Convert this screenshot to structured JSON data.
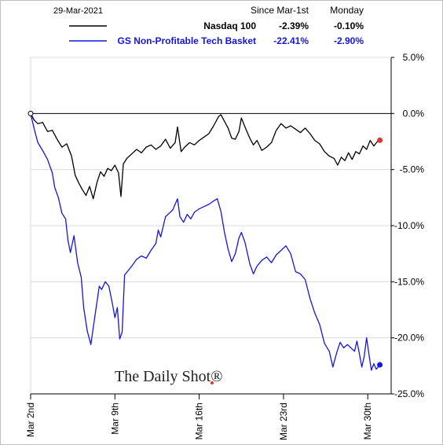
{
  "chart_data": {
    "type": "line",
    "date_label": "29-Mar-2021",
    "columns": [
      "Since Mar-1st",
      "Monday"
    ],
    "series": [
      {
        "name": "Nasdaq 100",
        "color": "#000000",
        "end_marker_color": "#e8322d",
        "since_mar_1st": "-2.39%",
        "monday": "-0.10%",
        "points": [
          [
            0,
            0
          ],
          [
            0.3,
            -0.6
          ],
          [
            0.6,
            -0.9
          ],
          [
            1.0,
            -0.8
          ],
          [
            1.4,
            -1.6
          ],
          [
            1.8,
            -1.5
          ],
          [
            2.2,
            -2.3
          ],
          [
            2.6,
            -3.0
          ],
          [
            3.0,
            -2.7
          ],
          [
            3.4,
            -3.8
          ],
          [
            3.7,
            -5.5
          ],
          [
            4.0,
            -6.2
          ],
          [
            4.3,
            -6.8
          ],
          [
            4.6,
            -7.3
          ],
          [
            4.9,
            -6.5
          ],
          [
            5.2,
            -7.6
          ],
          [
            5.5,
            -6.2
          ],
          [
            5.8,
            -5.2
          ],
          [
            6.1,
            -5.6
          ],
          [
            6.4,
            -4.9
          ],
          [
            6.7,
            -5.1
          ],
          [
            7.0,
            -4.6
          ],
          [
            7.3,
            -5.3
          ],
          [
            7.5,
            -7.4
          ],
          [
            7.7,
            -4.5
          ],
          [
            8.0,
            -4.0
          ],
          [
            8.4,
            -3.6
          ],
          [
            8.8,
            -3.2
          ],
          [
            9.2,
            -3.5
          ],
          [
            9.6,
            -3.0
          ],
          [
            10.0,
            -2.8
          ],
          [
            10.4,
            -3.2
          ],
          [
            10.8,
            -2.9
          ],
          [
            11.2,
            -2.3
          ],
          [
            11.6,
            -3.1
          ],
          [
            12.0,
            -2.6
          ],
          [
            12.2,
            -1.2
          ],
          [
            12.5,
            -3.4
          ],
          [
            12.8,
            -3.0
          ],
          [
            13.2,
            -2.6
          ],
          [
            13.6,
            -2.8
          ],
          [
            14.0,
            -2.4
          ],
          [
            14.4,
            -2.1
          ],
          [
            14.8,
            -1.8
          ],
          [
            15.2,
            -1.1
          ],
          [
            15.6,
            -0.3
          ],
          [
            15.8,
            -0.1
          ],
          [
            16.1,
            -0.7
          ],
          [
            16.4,
            -1.3
          ],
          [
            16.7,
            -2.2
          ],
          [
            17.0,
            -2.3
          ],
          [
            17.3,
            -1.6
          ],
          [
            17.5,
            -0.4
          ],
          [
            17.8,
            -1.2
          ],
          [
            18.2,
            -2.2
          ],
          [
            18.5,
            -2.8
          ],
          [
            18.8,
            -2.4
          ],
          [
            19.2,
            -3.3
          ],
          [
            19.6,
            -3.0
          ],
          [
            20.0,
            -2.6
          ],
          [
            20.4,
            -1.5
          ],
          [
            20.8,
            -0.9
          ],
          [
            21.2,
            -1.3
          ],
          [
            21.6,
            -1.1
          ],
          [
            22.0,
            -1.4
          ],
          [
            22.4,
            -1.7
          ],
          [
            22.8,
            -1.3
          ],
          [
            23.2,
            -1.8
          ],
          [
            23.6,
            -2.4
          ],
          [
            24.0,
            -2.7
          ],
          [
            24.4,
            -3.4
          ],
          [
            24.8,
            -3.8
          ],
          [
            25.2,
            -4.0
          ],
          [
            25.5,
            -4.6
          ],
          [
            25.8,
            -3.9
          ],
          [
            26.1,
            -4.2
          ],
          [
            26.4,
            -3.5
          ],
          [
            26.7,
            -4.1
          ],
          [
            27.0,
            -3.4
          ],
          [
            27.3,
            -3.6
          ],
          [
            27.6,
            -2.9
          ],
          [
            27.9,
            -3.2
          ],
          [
            28.2,
            -2.4
          ],
          [
            28.5,
            -2.9
          ],
          [
            28.8,
            -2.5
          ],
          [
            29.0,
            -2.39
          ]
        ]
      },
      {
        "name": "GS Non-Profitable Tech Basket",
        "color": "#1515e0",
        "end_marker_color": "#1515e0",
        "since_mar_1st": "-22.41%",
        "monday": "-2.90%",
        "points": [
          [
            0,
            0
          ],
          [
            0.3,
            -1.4
          ],
          [
            0.6,
            -2.6
          ],
          [
            1.0,
            -3.3
          ],
          [
            1.4,
            -4.1
          ],
          [
            1.8,
            -5.3
          ],
          [
            2.0,
            -6.6
          ],
          [
            2.3,
            -7.5
          ],
          [
            2.6,
            -8.9
          ],
          [
            2.9,
            -9.4
          ],
          [
            3.1,
            -11.3
          ],
          [
            3.3,
            -12.4
          ],
          [
            3.6,
            -10.9
          ],
          [
            3.9,
            -13.3
          ],
          [
            4.2,
            -14.6
          ],
          [
            4.4,
            -17.3
          ],
          [
            4.7,
            -19.4
          ],
          [
            5.0,
            -20.6
          ],
          [
            5.2,
            -19.1
          ],
          [
            5.4,
            -17.6
          ],
          [
            5.7,
            -15.4
          ],
          [
            5.9,
            -15.7
          ],
          [
            6.2,
            -15.0
          ],
          [
            6.5,
            -15.4
          ],
          [
            6.8,
            -17.0
          ],
          [
            7.0,
            -18.2
          ],
          [
            7.2,
            -17.3
          ],
          [
            7.4,
            -20.1
          ],
          [
            7.6,
            -19.5
          ],
          [
            7.8,
            -14.4
          ],
          [
            8.1,
            -14.0
          ],
          [
            8.4,
            -13.6
          ],
          [
            8.8,
            -13.0
          ],
          [
            9.2,
            -12.7
          ],
          [
            9.6,
            -12.9
          ],
          [
            10.0,
            -12.2
          ],
          [
            10.4,
            -11.6
          ],
          [
            10.6,
            -10.4
          ],
          [
            10.8,
            -11.0
          ],
          [
            11.2,
            -9.2
          ],
          [
            11.5,
            -8.9
          ],
          [
            11.8,
            -8.6
          ],
          [
            12.2,
            -7.6
          ],
          [
            12.4,
            -9.2
          ],
          [
            12.7,
            -9.7
          ],
          [
            13.0,
            -9.0
          ],
          [
            13.3,
            -9.4
          ],
          [
            13.6,
            -8.8
          ],
          [
            14.0,
            -8.5
          ],
          [
            14.4,
            -8.3
          ],
          [
            14.8,
            -8.1
          ],
          [
            15.2,
            -7.8
          ],
          [
            15.5,
            -7.6
          ],
          [
            15.8,
            -8.7
          ],
          [
            16.1,
            -10.6
          ],
          [
            16.4,
            -12.1
          ],
          [
            16.7,
            -13.2
          ],
          [
            17.0,
            -12.5
          ],
          [
            17.3,
            -11.1
          ],
          [
            17.5,
            -10.6
          ],
          [
            17.8,
            -11.5
          ],
          [
            18.2,
            -13.4
          ],
          [
            18.5,
            -14.3
          ],
          [
            18.8,
            -13.6
          ],
          [
            19.2,
            -13.1
          ],
          [
            19.6,
            -12.8
          ],
          [
            20.0,
            -13.3
          ],
          [
            20.4,
            -12.6
          ],
          [
            20.8,
            -12.2
          ],
          [
            21.2,
            -11.8
          ],
          [
            21.6,
            -12.5
          ],
          [
            22.0,
            -14.1
          ],
          [
            22.4,
            -14.3
          ],
          [
            22.8,
            -14.8
          ],
          [
            23.2,
            -16.5
          ],
          [
            23.6,
            -17.8
          ],
          [
            24.0,
            -18.8
          ],
          [
            24.4,
            -20.5
          ],
          [
            24.8,
            -21.2
          ],
          [
            25.1,
            -22.6
          ],
          [
            25.4,
            -21.4
          ],
          [
            25.7,
            -20.4
          ],
          [
            26.0,
            -20.9
          ],
          [
            26.3,
            -20.6
          ],
          [
            26.6,
            -20.9
          ],
          [
            26.9,
            -21.2
          ],
          [
            27.1,
            -20.3
          ],
          [
            27.3,
            -21.4
          ],
          [
            27.5,
            -22.6
          ],
          [
            27.7,
            -21.7
          ],
          [
            27.9,
            -20.0
          ],
          [
            28.1,
            -21.5
          ],
          [
            28.3,
            -22.9
          ],
          [
            28.5,
            -22.3
          ],
          [
            28.7,
            -22.8
          ],
          [
            29.0,
            -22.41
          ]
        ]
      }
    ],
    "x_ticks": [
      {
        "label": "Mar 2nd",
        "x": 0
      },
      {
        "label": "Mar 9th",
        "x": 7
      },
      {
        "label": "Mar 16th",
        "x": 14
      },
      {
        "label": "Mar 23rd",
        "x": 21
      },
      {
        "label": "Mar 30th",
        "x": 28
      }
    ],
    "xlim": [
      0,
      29
    ],
    "ylim": [
      -25,
      5
    ],
    "y_ticks": [
      {
        "label": "5.0%",
        "value": 5
      },
      {
        "label": "0.0%",
        "value": 0
      },
      {
        "label": "-5.0%",
        "value": -5
      },
      {
        "label": "-10.0%",
        "value": -10
      },
      {
        "label": "-15.0%",
        "value": -15
      },
      {
        "label": "-20.0%",
        "value": -20
      },
      {
        "label": "-25.0%",
        "value": -25
      }
    ],
    "gridlines": true,
    "zero_line_color": "#000000",
    "watermark": "The Daily Shot®"
  }
}
